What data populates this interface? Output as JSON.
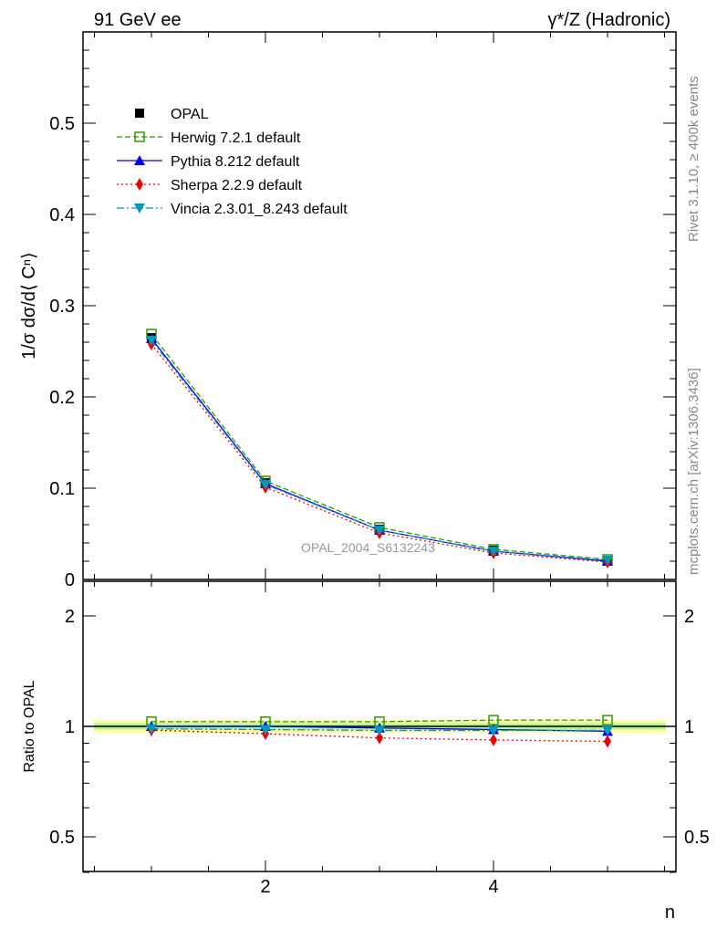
{
  "header": {
    "left": "91 GeV ee",
    "right": "γ*/Z (Hadronic)"
  },
  "side": {
    "rivet": "Rivet 3.1.10, ≥ 400k events",
    "mcplots": "mcplots.cern.ch [arXiv:1306.3436]"
  },
  "analysis_label": "OPAL_2004_S6132243",
  "chart_data": [
    {
      "type": "line",
      "title": "",
      "xlabel": "n",
      "ylabel": "1/σ dσ/d⟨ Cⁿ⟩",
      "xlim": [
        0.4,
        5.6
      ],
      "ylim": [
        0,
        0.6
      ],
      "yticks": [
        0,
        0.1,
        0.2,
        0.3,
        0.4,
        0.5
      ],
      "ytick_labels": [
        "0",
        "0.1",
        "0.2",
        "0.3",
        "0.4",
        "0.5"
      ],
      "x": [
        1,
        2,
        3,
        4,
        5
      ],
      "legend_position": "top-left",
      "series": [
        {
          "name": "OPAL",
          "color": "#000000",
          "values": [
            0.265,
            0.106,
            0.055,
            0.032,
            0.021
          ]
        },
        {
          "name": "Herwig 7.2.1 default",
          "color": "#339900",
          "values": [
            0.269,
            0.108,
            0.057,
            0.033,
            0.022
          ]
        },
        {
          "name": "Pythia 8.212 default",
          "color": "#0000ee",
          "values": [
            0.264,
            0.105,
            0.054,
            0.031,
            0.02
          ]
        },
        {
          "name": "Sherpa 2.2.9 default",
          "color": "#ee0000",
          "values": [
            0.258,
            0.101,
            0.051,
            0.029,
            0.019
          ]
        },
        {
          "name": "Vincia 2.3.01_8.243 default",
          "color": "#0099bb",
          "values": [
            0.262,
            0.104,
            0.054,
            0.031,
            0.021
          ]
        }
      ]
    },
    {
      "type": "line",
      "xlabel": "n",
      "ylabel": "Ratio to OPAL",
      "yscale": "log",
      "ylim": [
        0.37,
        2.4
      ],
      "yticks": [
        0.5,
        1,
        2
      ],
      "ytick_labels": [
        "0.5",
        "1",
        "2"
      ],
      "xticks": [
        2,
        4
      ],
      "xtick_labels": [
        "2",
        "4"
      ],
      "x": [
        1,
        2,
        3,
        4,
        5
      ],
      "series": [
        {
          "name": "Herwig 7.2.1 default",
          "values": [
            1.03,
            1.03,
            1.03,
            1.04,
            1.04
          ]
        },
        {
          "name": "Pythia 8.212 default",
          "values": [
            1.0,
            1.0,
            0.99,
            0.98,
            0.97
          ]
        },
        {
          "name": "Sherpa 2.2.9 default",
          "values": [
            0.977,
            0.955,
            0.93,
            0.918,
            0.91
          ]
        },
        {
          "name": "Vincia 2.3.01_8.243 default",
          "values": [
            0.985,
            0.98,
            0.975,
            0.975,
            0.975
          ]
        }
      ]
    }
  ]
}
